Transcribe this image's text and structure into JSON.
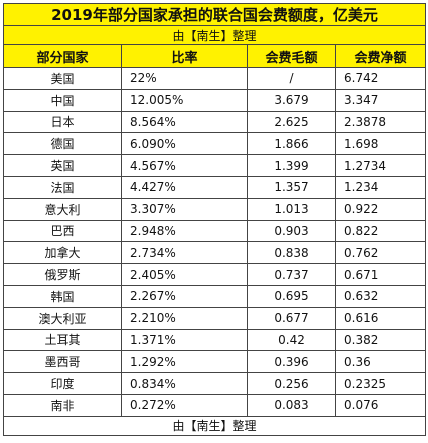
{
  "title": "2019年部分国家承担的联合国会费额度，亿美元",
  "subtitle": "由【南生】整理",
  "headers": [
    "部分国家",
    "比率",
    "会费毛额",
    "会费净额"
  ],
  "rows": [
    {
      "country": "美国",
      "ratio": "22%",
      "gross": "/",
      "net": "6.742"
    },
    {
      "country": "中国",
      "ratio": "12.005%",
      "gross": "3.679",
      "net": "3.347"
    },
    {
      "country": "日本",
      "ratio": "8.564%",
      "gross": "2.625",
      "net": "2.3878"
    },
    {
      "country": "德国",
      "ratio": "6.090%",
      "gross": "1.866",
      "net": "1.698"
    },
    {
      "country": "英国",
      "ratio": "4.567%",
      "gross": "1.399",
      "net": "1.2734"
    },
    {
      "country": "法国",
      "ratio": "4.427%",
      "gross": "1.357",
      "net": "1.234"
    },
    {
      "country": "意大利",
      "ratio": "3.307%",
      "gross": "1.013",
      "net": "0.922"
    },
    {
      "country": "巴西",
      "ratio": "2.948%",
      "gross": "0.903",
      "net": "0.822"
    },
    {
      "country": "加拿大",
      "ratio": "2.734%",
      "gross": "0.838",
      "net": "0.762"
    },
    {
      "country": "俄罗斯",
      "ratio": "2.405%",
      "gross": "0.737",
      "net": "0.671"
    },
    {
      "country": "韩国",
      "ratio": "2.267%",
      "gross": "0.695",
      "net": "0.632"
    },
    {
      "country": "澳大利亚",
      "ratio": "2.210%",
      "gross": "0.677",
      "net": "0.616"
    },
    {
      "country": "土耳其",
      "ratio": "1.371%",
      "gross": "0.42",
      "net": "0.382"
    },
    {
      "country": "墨西哥",
      "ratio": "1.292%",
      "gross": "0.396",
      "net": "0.36"
    },
    {
      "country": "印度",
      "ratio": "0.834%",
      "gross": "0.256",
      "net": "0.2325"
    },
    {
      "country": "南非",
      "ratio": "0.272%",
      "gross": "0.083",
      "net": "0.076"
    }
  ],
  "footer": "由【南生】整理",
  "colors": {
    "header_bg": "#fff200",
    "border": "#444444"
  }
}
